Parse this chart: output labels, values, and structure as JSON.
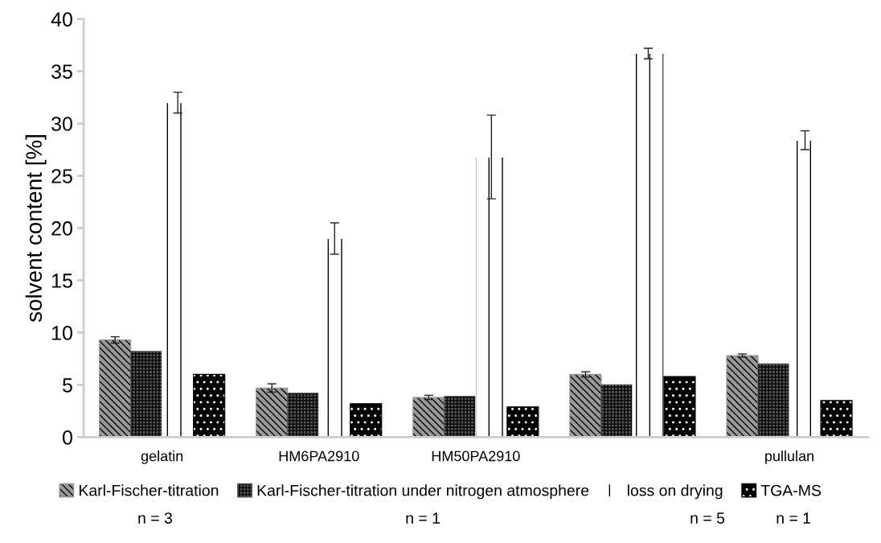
{
  "chart_data": {
    "type": "bar",
    "ylabel": "solvent content [%]",
    "categories": [
      "gelatin",
      "HM6PA2910",
      "HM50PA2910",
      null,
      "pullulan"
    ],
    "series": [
      {
        "name": "Karl-Fischer-titration",
        "color": "#999999",
        "values": [
          9.3,
          4.7,
          3.8,
          6.0,
          7.8
        ],
        "errors": [
          0.3,
          0.4,
          0.2,
          0.25,
          0.15
        ]
      },
      {
        "name": "Karl-Fischer-titration under nitrogen atmosphere",
        "color": "#555555",
        "values": [
          8.2,
          4.2,
          3.9,
          5.0,
          7.0
        ]
      },
      {
        "name": "loss on drying",
        "color": "#ffffff",
        "values": [
          32.0,
          19.0,
          26.8,
          36.7,
          28.4
        ],
        "errors": [
          1.0,
          1.5,
          4.0,
          0.5,
          0.9
        ]
      },
      {
        "name": "TGA-MS",
        "color": "#000000",
        "values": [
          6.0,
          3.2,
          2.9,
          5.8,
          3.5
        ]
      }
    ],
    "ylim": [
      0,
      40
    ],
    "yticks": [
      0,
      5,
      10,
      15,
      20,
      25,
      30,
      35,
      40
    ],
    "grid": false,
    "legend": "bottom",
    "annotations": [
      "n = 3",
      "n = 1",
      "n = 5",
      "n = 1"
    ]
  }
}
